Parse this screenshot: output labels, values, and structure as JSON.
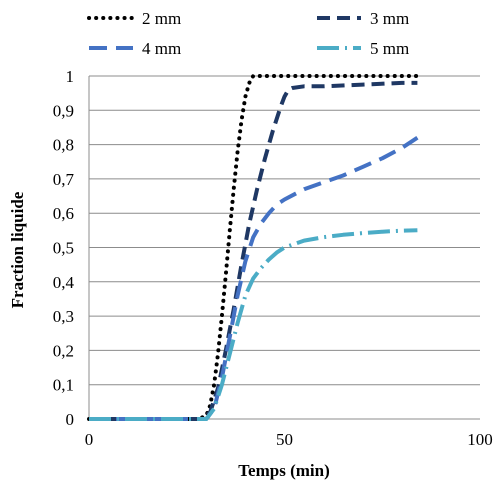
{
  "chart_data": {
    "type": "line",
    "title": "",
    "xlabel": "Temps (min)",
    "ylabel": "Fraction liquide",
    "xlim": [
      0,
      100
    ],
    "ylim": [
      0,
      1
    ],
    "x_ticks": [
      0,
      50,
      100
    ],
    "x_tick_labels": [
      "0",
      "50",
      "100"
    ],
    "y_ticks": [
      0,
      0.1,
      0.2,
      0.3,
      0.4,
      0.5,
      0.6,
      0.7,
      0.8,
      0.9,
      1
    ],
    "y_tick_labels": [
      "0",
      "0,1",
      "0,2",
      "0,3",
      "0,4",
      "0,5",
      "0,6",
      "0,7",
      "0,8",
      "0,9",
      "1"
    ],
    "grid": "horizontal",
    "legend_position": "top",
    "series": [
      {
        "name": "2 mm",
        "color": "#000000",
        "line_style": "dotted",
        "x": [
          0,
          28,
          30,
          31,
          32,
          33,
          34,
          35,
          36,
          37,
          38,
          39,
          40,
          41,
          42,
          44,
          50,
          60,
          70,
          80,
          84
        ],
        "y": [
          0,
          0,
          0.01,
          0.04,
          0.1,
          0.19,
          0.3,
          0.42,
          0.55,
          0.67,
          0.78,
          0.87,
          0.94,
          0.98,
          1,
          1,
          1,
          1,
          1,
          1,
          1
        ]
      },
      {
        "name": "3 mm",
        "color": "#1F3864",
        "line_style": "dashed",
        "x": [
          0,
          29,
          31,
          33,
          35,
          37,
          39,
          41,
          43,
          45,
          47,
          49,
          50,
          51,
          52,
          55,
          60,
          70,
          80,
          84
        ],
        "y": [
          0,
          0,
          0.02,
          0.09,
          0.2,
          0.32,
          0.45,
          0.57,
          0.67,
          0.76,
          0.84,
          0.91,
          0.94,
          0.96,
          0.965,
          0.97,
          0.97,
          0.975,
          0.98,
          0.98
        ]
      },
      {
        "name": "4 mm",
        "color": "#4472C4",
        "line_style": "long-dash",
        "x": [
          0,
          30,
          32,
          34,
          36,
          38,
          40,
          42,
          44,
          46,
          48,
          50,
          55,
          60,
          65,
          70,
          75,
          80,
          84
        ],
        "y": [
          0,
          0,
          0.03,
          0.12,
          0.24,
          0.36,
          0.46,
          0.53,
          0.57,
          0.6,
          0.625,
          0.64,
          0.67,
          0.69,
          0.71,
          0.735,
          0.76,
          0.79,
          0.82
        ]
      },
      {
        "name": "5 mm",
        "color": "#4BACC6",
        "line_style": "dash-dot",
        "x": [
          0,
          30,
          32,
          34,
          36,
          38,
          40,
          42,
          44,
          46,
          48,
          50,
          55,
          60,
          65,
          70,
          75,
          80,
          84
        ],
        "y": [
          0,
          0,
          0.03,
          0.1,
          0.19,
          0.28,
          0.36,
          0.41,
          0.44,
          0.465,
          0.485,
          0.5,
          0.52,
          0.53,
          0.537,
          0.542,
          0.546,
          0.549,
          0.55
        ]
      }
    ]
  }
}
